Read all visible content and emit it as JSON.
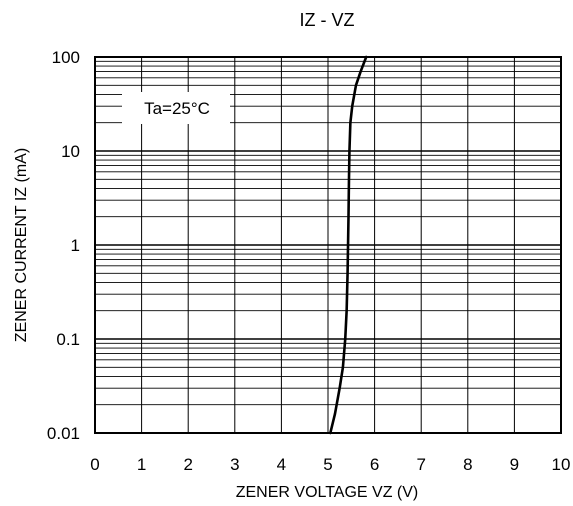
{
  "chart_data": {
    "type": "line",
    "title": "IZ - VZ",
    "xlabel": "ZENER VOLTAGE   VZ (V)",
    "ylabel": "ZENER CURRENT   IZ (mA)",
    "xlim": [
      0,
      10
    ],
    "ylim": [
      0.01,
      100
    ],
    "yscale": "log",
    "grid": true,
    "x_ticks": [
      "0",
      "1",
      "2",
      "3",
      "4",
      "5",
      "6",
      "7",
      "8",
      "9",
      "10"
    ],
    "y_ticks": [
      "0.01",
      "0.1",
      "1",
      "10",
      "100"
    ],
    "annotation": "Ta=25°C",
    "series": [
      {
        "x": [
          5.05,
          5.15,
          5.25,
          5.32,
          5.37,
          5.4,
          5.42,
          5.43,
          5.44,
          5.45,
          5.46,
          5.48,
          5.52,
          5.6,
          5.7,
          5.82
        ],
        "y": [
          0.01,
          0.016,
          0.03,
          0.05,
          0.1,
          0.2,
          0.5,
          1,
          2,
          5,
          10,
          20,
          30,
          50,
          70,
          100
        ]
      }
    ]
  },
  "colors": {
    "line": "#000000",
    "grid": "#000000",
    "background": "#ffffff"
  }
}
